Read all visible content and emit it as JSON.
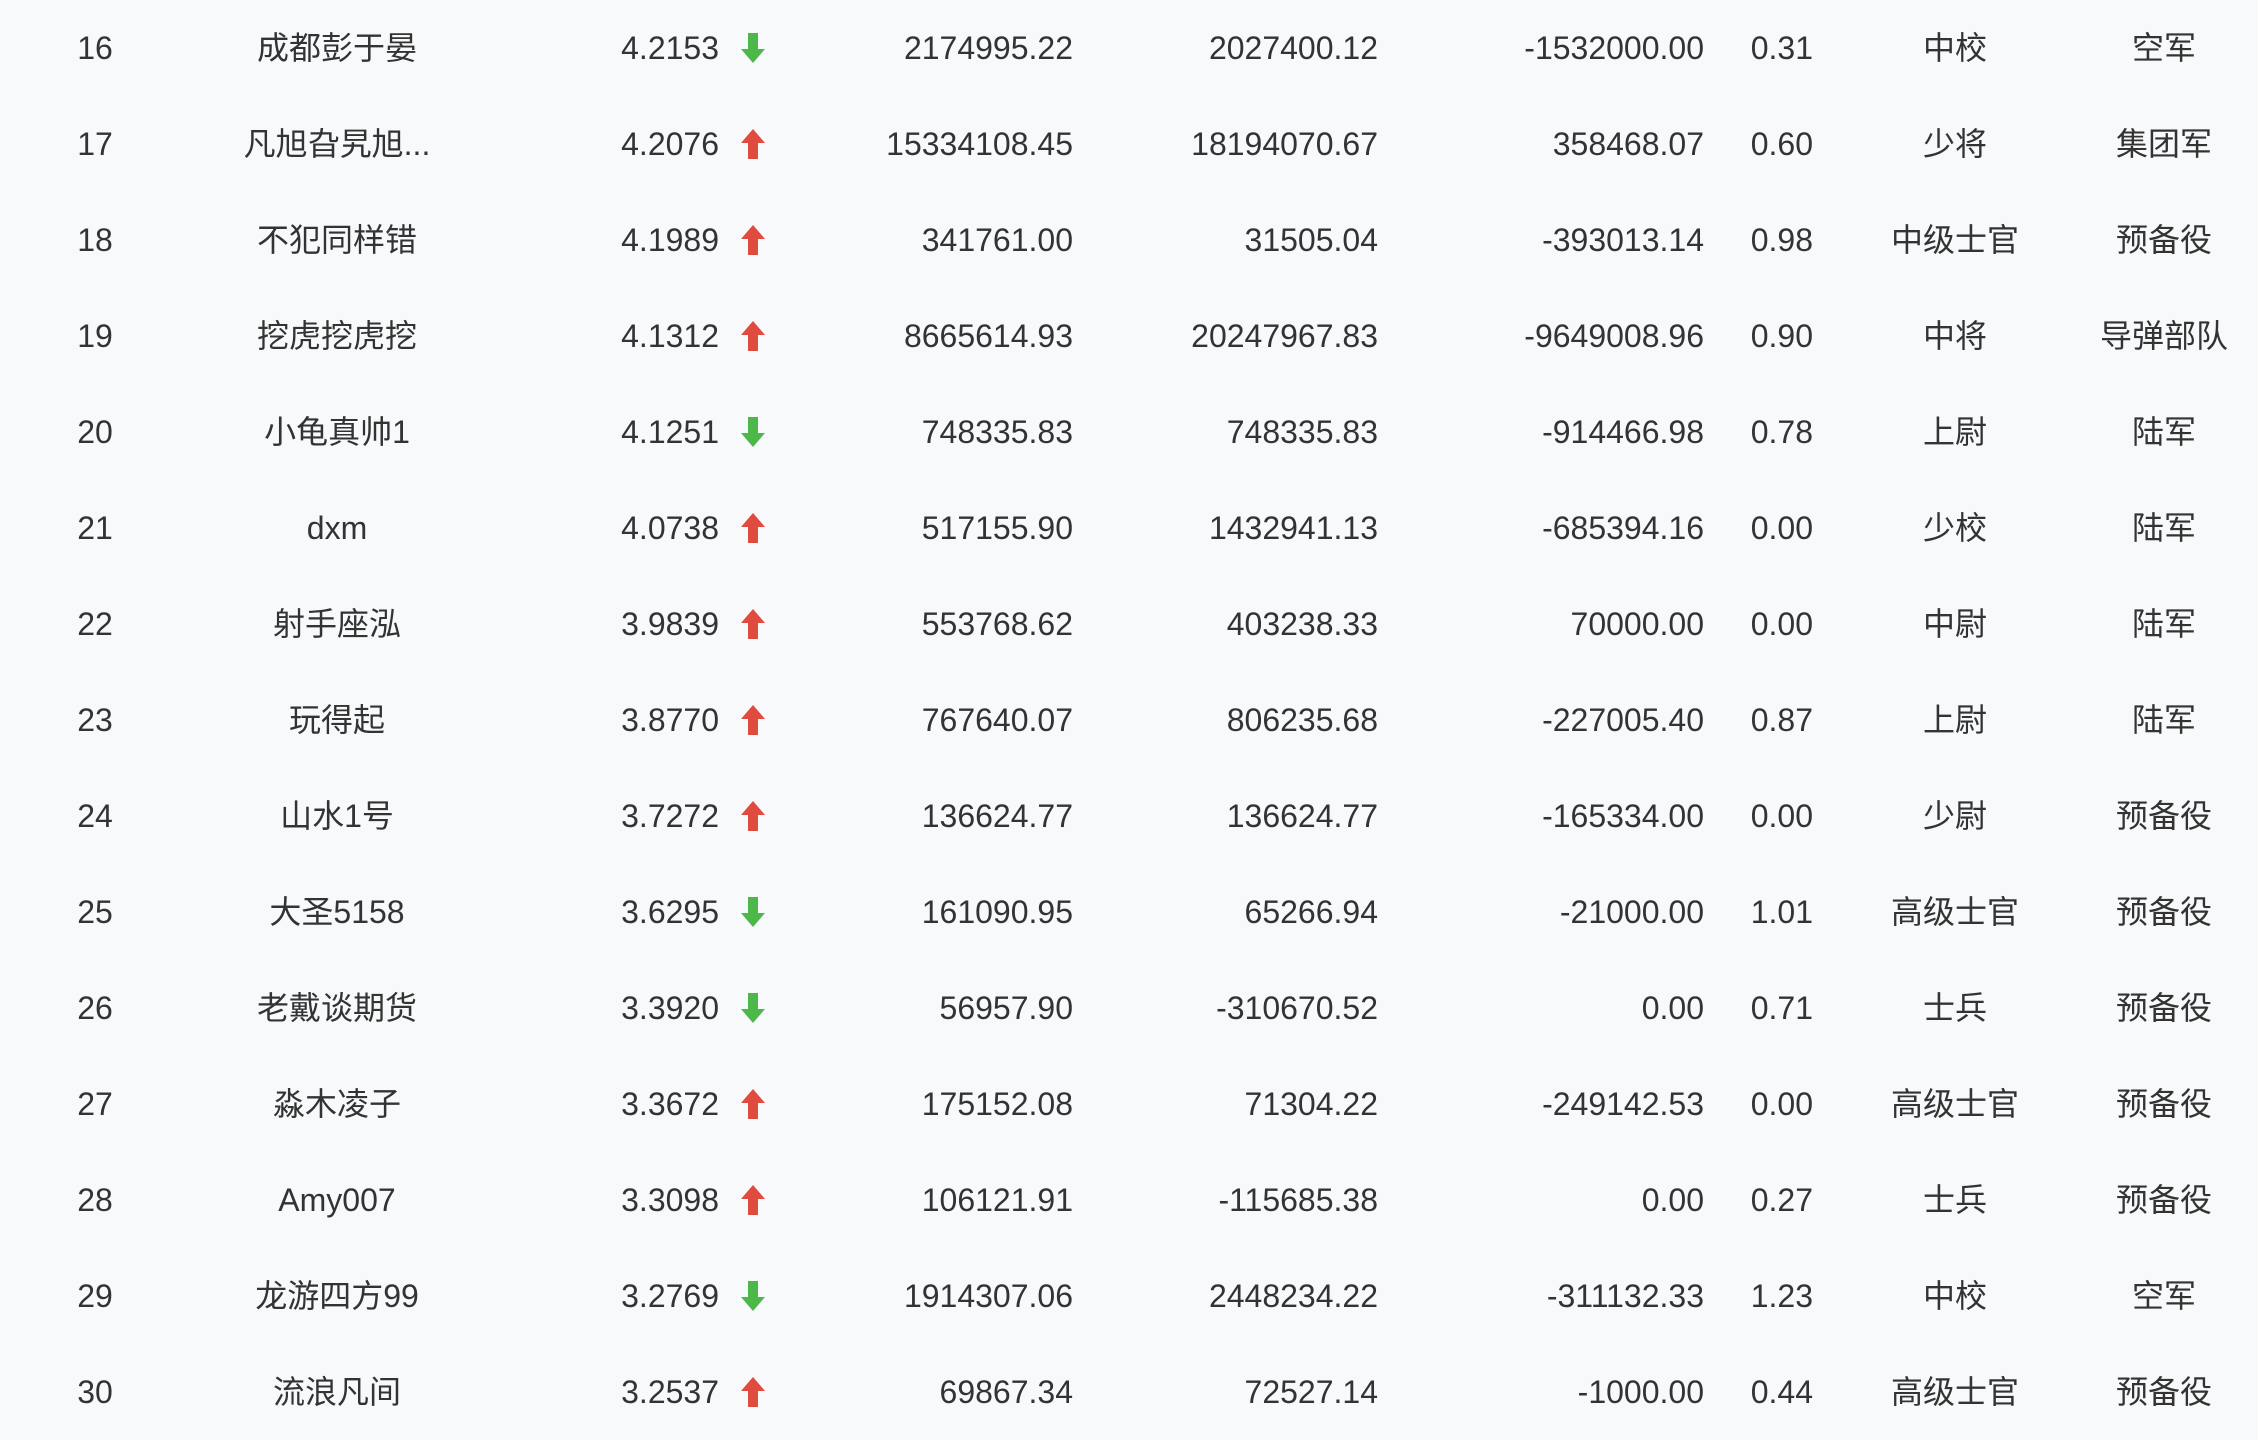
{
  "colors": {
    "up": "#e04b3f",
    "down": "#4cb84a",
    "text": "#333333",
    "background": "#f7f9fb"
  },
  "rows": [
    {
      "rank": "16",
      "name": "成都彭于晏",
      "score": "4.2153",
      "trend": "down",
      "v1": "2174995.22",
      "v2": "2027400.12",
      "v3": "-1532000.00",
      "ratio": "0.31",
      "grade": "中校",
      "unit": "空军"
    },
    {
      "rank": "17",
      "name": "凡旭旮旯旭...",
      "score": "4.2076",
      "trend": "up",
      "v1": "15334108.45",
      "v2": "18194070.67",
      "v3": "358468.07",
      "ratio": "0.60",
      "grade": "少将",
      "unit": "集团军"
    },
    {
      "rank": "18",
      "name": "不犯同样错",
      "score": "4.1989",
      "trend": "up",
      "v1": "341761.00",
      "v2": "31505.04",
      "v3": "-393013.14",
      "ratio": "0.98",
      "grade": "中级士官",
      "unit": "预备役"
    },
    {
      "rank": "19",
      "name": "挖虎挖虎挖",
      "score": "4.1312",
      "trend": "up",
      "v1": "8665614.93",
      "v2": "20247967.83",
      "v3": "-9649008.96",
      "ratio": "0.90",
      "grade": "中将",
      "unit": "导弹部队"
    },
    {
      "rank": "20",
      "name": "小龟真帅1",
      "score": "4.1251",
      "trend": "down",
      "v1": "748335.83",
      "v2": "748335.83",
      "v3": "-914466.98",
      "ratio": "0.78",
      "grade": "上尉",
      "unit": "陆军"
    },
    {
      "rank": "21",
      "name": "dxm",
      "score": "4.0738",
      "trend": "up",
      "v1": "517155.90",
      "v2": "1432941.13",
      "v3": "-685394.16",
      "ratio": "0.00",
      "grade": "少校",
      "unit": "陆军"
    },
    {
      "rank": "22",
      "name": "射手座泓",
      "score": "3.9839",
      "trend": "up",
      "v1": "553768.62",
      "v2": "403238.33",
      "v3": "70000.00",
      "ratio": "0.00",
      "grade": "中尉",
      "unit": "陆军"
    },
    {
      "rank": "23",
      "name": "玩得起",
      "score": "3.8770",
      "trend": "up",
      "v1": "767640.07",
      "v2": "806235.68",
      "v3": "-227005.40",
      "ratio": "0.87",
      "grade": "上尉",
      "unit": "陆军"
    },
    {
      "rank": "24",
      "name": "山水1号",
      "score": "3.7272",
      "trend": "up",
      "v1": "136624.77",
      "v2": "136624.77",
      "v3": "-165334.00",
      "ratio": "0.00",
      "grade": "少尉",
      "unit": "预备役"
    },
    {
      "rank": "25",
      "name": "大圣5158",
      "score": "3.6295",
      "trend": "down",
      "v1": "161090.95",
      "v2": "65266.94",
      "v3": "-21000.00",
      "ratio": "1.01",
      "grade": "高级士官",
      "unit": "预备役"
    },
    {
      "rank": "26",
      "name": "老戴谈期货",
      "score": "3.3920",
      "trend": "down",
      "v1": "56957.90",
      "v2": "-310670.52",
      "v3": "0.00",
      "ratio": "0.71",
      "grade": "士兵",
      "unit": "预备役"
    },
    {
      "rank": "27",
      "name": "淼木凌子",
      "score": "3.3672",
      "trend": "up",
      "v1": "175152.08",
      "v2": "71304.22",
      "v3": "-249142.53",
      "ratio": "0.00",
      "grade": "高级士官",
      "unit": "预备役"
    },
    {
      "rank": "28",
      "name": "Amy007",
      "score": "3.3098",
      "trend": "up",
      "v1": "106121.91",
      "v2": "-115685.38",
      "v3": "0.00",
      "ratio": "0.27",
      "grade": "士兵",
      "unit": "预备役"
    },
    {
      "rank": "29",
      "name": "龙游四方99",
      "score": "3.2769",
      "trend": "down",
      "v1": "1914307.06",
      "v2": "2448234.22",
      "v3": "-311132.33",
      "ratio": "1.23",
      "grade": "中校",
      "unit": "空军"
    },
    {
      "rank": "30",
      "name": "流浪凡间",
      "score": "3.2537",
      "trend": "up",
      "v1": "69867.34",
      "v2": "72527.14",
      "v3": "-1000.00",
      "ratio": "0.44",
      "grade": "高级士官",
      "unit": "预备役"
    }
  ]
}
